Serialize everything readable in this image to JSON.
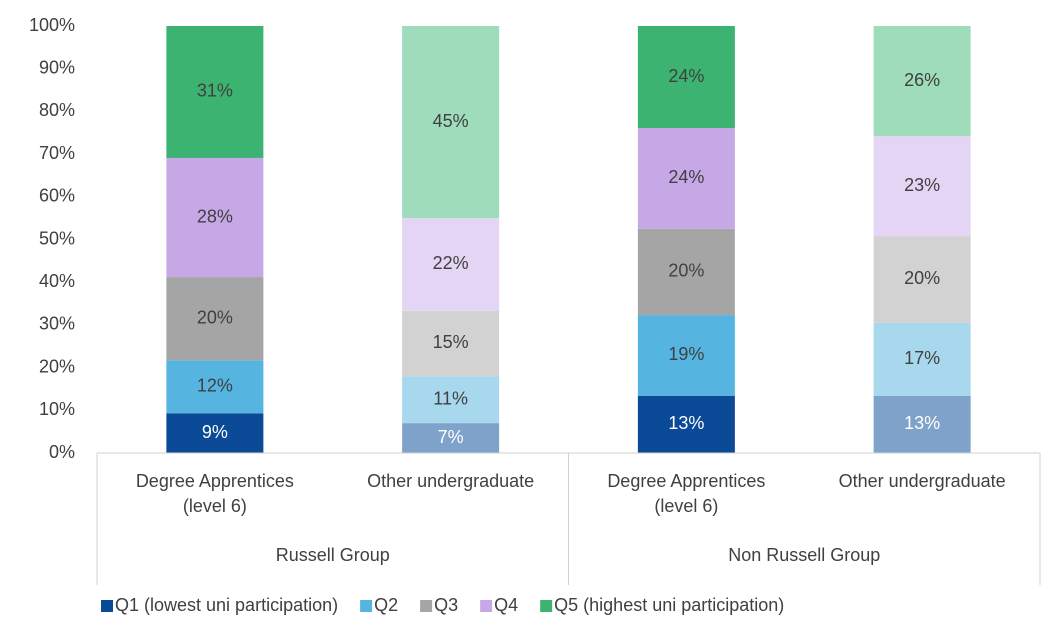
{
  "chart_data": {
    "type": "stacked_bar_100",
    "categories": [
      [
        "Degree Apprentices",
        "(level 6)"
      ],
      [
        "Other undergraduate"
      ],
      [
        "Degree Apprentices",
        "(level 6)"
      ],
      [
        "Other undergraduate"
      ]
    ],
    "groups": [
      "Russell Group",
      "Non Russell Group"
    ],
    "ylim": [
      0,
      100
    ],
    "yticks": [
      {
        "value": 0,
        "label": "0%"
      },
      {
        "value": 10,
        "label": "10%"
      },
      {
        "value": 20,
        "label": "20%"
      },
      {
        "value": 30,
        "label": "30%"
      },
      {
        "value": 40,
        "label": "40%"
      },
      {
        "value": 50,
        "label": "50%"
      },
      {
        "value": 60,
        "label": "60%"
      },
      {
        "value": 70,
        "label": "70%"
      },
      {
        "value": 80,
        "label": "80%"
      },
      {
        "value": 90,
        "label": "90%"
      },
      {
        "value": 100,
        "label": "100%"
      }
    ],
    "grid": false,
    "legend": "bottom",
    "series": [
      {
        "name": "Q1 (lowest uni participation)",
        "colors": [
          "#0b4a96",
          "#7fa2cb",
          "#0b4a96",
          "#7fa2cb"
        ],
        "label_color": "#ffffff",
        "values": [
          9.3,
          7.0,
          13.4,
          13.4
        ],
        "value_labels": [
          "9%",
          "7%",
          "13%",
          "13%"
        ]
      },
      {
        "name": "Q2",
        "colors": [
          "#56b4e0",
          "#a8d8ee",
          "#56b4e0",
          "#a8d8ee"
        ],
        "label_color": "#404040",
        "values": [
          12.4,
          11.0,
          18.9,
          17.1
        ],
        "value_labels": [
          "12%",
          "11%",
          "19%",
          "17%"
        ]
      },
      {
        "name": "Q3",
        "colors": [
          "#a5a5a5",
          "#d2d2d2",
          "#a5a5a5",
          "#d2d2d2"
        ],
        "label_color": "#404040",
        "values": [
          19.5,
          15.3,
          20.2,
          20.3
        ],
        "value_labels": [
          "20%",
          "15%",
          "20%",
          "20%"
        ]
      },
      {
        "name": "Q4",
        "colors": [
          "#c6a8e6",
          "#e3d5f3",
          "#c6a8e6",
          "#e3d5f3"
        ],
        "label_color": "#404040",
        "values": [
          27.9,
          21.7,
          23.6,
          23.4
        ],
        "value_labels": [
          "28%",
          "22%",
          "24%",
          "23%"
        ]
      },
      {
        "name": "Q5 (highest uni participation)",
        "colors": [
          "#3cb371",
          "#9edcbc",
          "#3cb371",
          "#9edcbc"
        ],
        "label_color": "#404040",
        "values": [
          30.9,
          45.0,
          23.9,
          25.8
        ],
        "value_labels": [
          "31%",
          "45%",
          "24%",
          "26%"
        ]
      }
    ]
  }
}
